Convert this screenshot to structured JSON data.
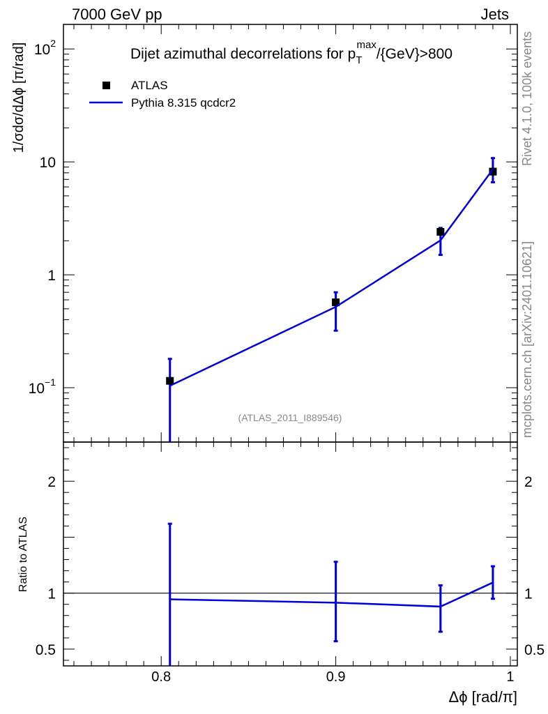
{
  "header": {
    "left": "7000 GeV pp",
    "right": "Jets"
  },
  "side_labels": {
    "rivet": "Rivet 4.1.0,  100k events",
    "mcplots": "mcplots.cern.ch [arXiv:2401.10621]"
  },
  "watermark": "(ATLAS_2011_I889546)",
  "colors": {
    "mc": "#0000dd",
    "data": "#000000",
    "ref_line": "#000000",
    "gray_text": "#888888"
  },
  "chart_data": [
    {
      "type": "scatter",
      "panel": "main",
      "title": "Dijet azimuthal decorrelations for p",
      "title_sub": "T",
      "title_sup": "max",
      "title_tail": "/{GeV}>800",
      "ylabel": "1/σdσ/dΔϕ [π/rad]",
      "yscale": "log",
      "ylim": [
        0.033,
        165
      ],
      "xlim": [
        0.744,
        1.004
      ],
      "y_ticks": [
        {
          "value": 0.1,
          "base": "10",
          "exp": "−1"
        },
        {
          "value": 1,
          "base": "1",
          "exp": ""
        },
        {
          "value": 10,
          "base": "10",
          "exp": ""
        },
        {
          "value": 100,
          "base": "10",
          "exp": "2"
        }
      ],
      "legend": [
        {
          "label": "ATLAS",
          "marker": "square"
        },
        {
          "label": "Pythia 8.315 qcdcr2",
          "marker": "line"
        }
      ],
      "legend_position": "top-left",
      "series": [
        {
          "name": "ATLAS",
          "x": [
            0.805,
            0.9,
            0.96,
            0.99
          ],
          "y": [
            0.115,
            0.57,
            2.4,
            8.2
          ]
        },
        {
          "name": "Pythia 8.315 qcdcr2",
          "x": [
            0.805,
            0.9,
            0.96,
            0.99
          ],
          "y": [
            0.104,
            0.52,
            2.02,
            8.6
          ],
          "err_low": [
            0.033,
            0.32,
            1.5,
            6.6
          ],
          "err_high": [
            0.18,
            0.7,
            2.6,
            10.8
          ]
        }
      ]
    },
    {
      "type": "line",
      "panel": "ratio",
      "ylabel": "Ratio to ATLAS",
      "xlabel": "Δϕ [rad/π]",
      "ylim": [
        0.35,
        2.35
      ],
      "xlim": [
        0.744,
        1.004
      ],
      "y_ticks": [
        {
          "value": 0.5,
          "label": "0.5"
        },
        {
          "value": 1,
          "label": "1"
        },
        {
          "value": 2,
          "label": "2"
        }
      ],
      "x_ticks": [
        {
          "value": 0.8,
          "label": "0.8"
        },
        {
          "value": 0.9,
          "label": "0.9"
        },
        {
          "value": 1.0,
          "label": "1"
        }
      ],
      "reference": 1.0,
      "series": [
        {
          "name": "Pythia 8.315 qcdcr2",
          "x": [
            0.805,
            0.9,
            0.96,
            0.99
          ],
          "y": [
            0.945,
            0.915,
            0.88,
            1.095
          ],
          "err_low": [
            0.35,
            0.57,
            0.655,
            0.95
          ],
          "err_high": [
            1.62,
            1.28,
            1.07,
            1.24
          ]
        }
      ]
    }
  ]
}
